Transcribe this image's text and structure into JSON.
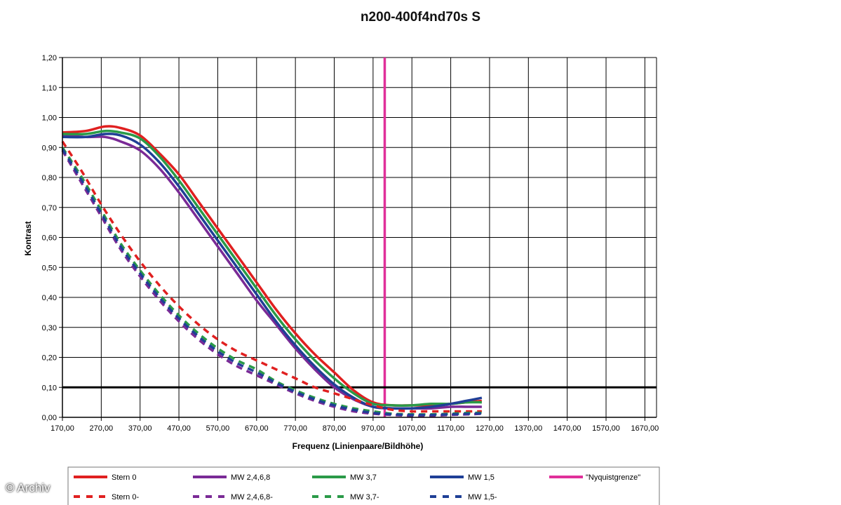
{
  "watermark": "© Archiv",
  "chart_data": {
    "type": "line",
    "title": "n200-400f4nd70s S",
    "xlabel": "Frequenz (Linienpaare/Bildhöhe)",
    "ylabel": "Kontrast",
    "xlim": [
      170,
      1700
    ],
    "ylim": [
      0,
      1.2
    ],
    "x_ticks": [
      "170,00",
      "270,00",
      "370,00",
      "470,00",
      "570,00",
      "670,00",
      "770,00",
      "870,00",
      "970,00",
      "1070,00",
      "1170,00",
      "1270,00",
      "1370,00",
      "1470,00",
      "1570,00",
      "1670,00"
    ],
    "y_ticks": [
      "0,00",
      "0,10",
      "0,20",
      "0,30",
      "0,40",
      "0,50",
      "0,60",
      "0,70",
      "0,80",
      "0,90",
      "1,00",
      "1,10",
      "1,20"
    ],
    "grid": true,
    "legend_position": "bottom",
    "reference_lines": [
      {
        "name": "\"Nyquistgrenze\"",
        "orientation": "vertical",
        "x": 1000,
        "color": "#e0309a"
      },
      {
        "name": "",
        "orientation": "horizontal",
        "y": 0.1,
        "color": "#000000"
      }
    ],
    "series": [
      {
        "name": "Stern 0",
        "color": "#e02020",
        "dash": false,
        "points": [
          [
            170,
            0.95
          ],
          [
            230,
            0.955
          ],
          [
            280,
            0.97
          ],
          [
            320,
            0.965
          ],
          [
            370,
            0.94
          ],
          [
            420,
            0.88
          ],
          [
            470,
            0.81
          ],
          [
            520,
            0.72
          ],
          [
            570,
            0.63
          ],
          [
            620,
            0.54
          ],
          [
            670,
            0.45
          ],
          [
            720,
            0.36
          ],
          [
            770,
            0.28
          ],
          [
            820,
            0.21
          ],
          [
            870,
            0.15
          ],
          [
            920,
            0.09
          ],
          [
            970,
            0.05
          ],
          [
            1020,
            0.04
          ],
          [
            1070,
            0.04
          ],
          [
            1120,
            0.04
          ],
          [
            1170,
            0.045
          ],
          [
            1210,
            0.05
          ],
          [
            1250,
            0.055
          ]
        ]
      },
      {
        "name": "MW 2,4,6,8",
        "color": "#7a2a96",
        "dash": false,
        "points": [
          [
            170,
            0.94
          ],
          [
            230,
            0.935
          ],
          [
            280,
            0.935
          ],
          [
            320,
            0.92
          ],
          [
            370,
            0.89
          ],
          [
            420,
            0.83
          ],
          [
            470,
            0.75
          ],
          [
            520,
            0.66
          ],
          [
            570,
            0.57
          ],
          [
            620,
            0.48
          ],
          [
            670,
            0.39
          ],
          [
            720,
            0.31
          ],
          [
            770,
            0.23
          ],
          [
            820,
            0.16
          ],
          [
            870,
            0.1
          ],
          [
            920,
            0.06
          ],
          [
            970,
            0.035
          ],
          [
            1020,
            0.03
          ],
          [
            1070,
            0.03
          ],
          [
            1120,
            0.03
          ],
          [
            1170,
            0.035
          ],
          [
            1210,
            0.035
          ],
          [
            1250,
            0.035
          ]
        ]
      },
      {
        "name": "MW 3,7",
        "color": "#2a9a48",
        "dash": false,
        "points": [
          [
            170,
            0.945
          ],
          [
            230,
            0.945
          ],
          [
            280,
            0.955
          ],
          [
            320,
            0.95
          ],
          [
            370,
            0.93
          ],
          [
            420,
            0.87
          ],
          [
            470,
            0.79
          ],
          [
            520,
            0.7
          ],
          [
            570,
            0.61
          ],
          [
            620,
            0.52
          ],
          [
            670,
            0.43
          ],
          [
            720,
            0.34
          ],
          [
            770,
            0.26
          ],
          [
            820,
            0.19
          ],
          [
            870,
            0.13
          ],
          [
            920,
            0.08
          ],
          [
            970,
            0.045
          ],
          [
            1020,
            0.04
          ],
          [
            1070,
            0.04
          ],
          [
            1120,
            0.045
          ],
          [
            1170,
            0.045
          ],
          [
            1210,
            0.05
          ],
          [
            1250,
            0.05
          ]
        ]
      },
      {
        "name": "MW 1,5",
        "color": "#1f3f96",
        "dash": false,
        "points": [
          [
            170,
            0.935
          ],
          [
            230,
            0.935
          ],
          [
            280,
            0.945
          ],
          [
            320,
            0.94
          ],
          [
            370,
            0.91
          ],
          [
            420,
            0.85
          ],
          [
            470,
            0.77
          ],
          [
            520,
            0.68
          ],
          [
            570,
            0.59
          ],
          [
            620,
            0.5
          ],
          [
            670,
            0.41
          ],
          [
            720,
            0.32
          ],
          [
            770,
            0.24
          ],
          [
            820,
            0.17
          ],
          [
            870,
            0.11
          ],
          [
            920,
            0.065
          ],
          [
            970,
            0.035
          ],
          [
            1020,
            0.03
          ],
          [
            1070,
            0.03
          ],
          [
            1120,
            0.035
          ],
          [
            1170,
            0.045
          ],
          [
            1210,
            0.055
          ],
          [
            1250,
            0.065
          ]
        ]
      },
      {
        "name": "Stern 0-",
        "color": "#e02020",
        "dash": true,
        "points": [
          [
            170,
            0.92
          ],
          [
            220,
            0.82
          ],
          [
            270,
            0.71
          ],
          [
            320,
            0.61
          ],
          [
            370,
            0.52
          ],
          [
            420,
            0.44
          ],
          [
            470,
            0.37
          ],
          [
            520,
            0.31
          ],
          [
            570,
            0.26
          ],
          [
            620,
            0.22
          ],
          [
            670,
            0.19
          ],
          [
            720,
            0.16
          ],
          [
            770,
            0.13
          ],
          [
            820,
            0.1
          ],
          [
            870,
            0.08
          ],
          [
            920,
            0.06
          ],
          [
            970,
            0.04
          ],
          [
            1020,
            0.025
          ],
          [
            1070,
            0.02
          ],
          [
            1120,
            0.02
          ],
          [
            1170,
            0.02
          ],
          [
            1220,
            0.02
          ],
          [
            1250,
            0.02
          ]
        ]
      },
      {
        "name": "MW 2,4,6,8-",
        "color": "#7a2a96",
        "dash": true,
        "points": [
          [
            170,
            0.89
          ],
          [
            220,
            0.78
          ],
          [
            270,
            0.67
          ],
          [
            320,
            0.56
          ],
          [
            370,
            0.47
          ],
          [
            420,
            0.39
          ],
          [
            470,
            0.32
          ],
          [
            520,
            0.26
          ],
          [
            570,
            0.21
          ],
          [
            620,
            0.17
          ],
          [
            670,
            0.14
          ],
          [
            720,
            0.11
          ],
          [
            770,
            0.08
          ],
          [
            820,
            0.055
          ],
          [
            870,
            0.035
          ],
          [
            920,
            0.02
          ],
          [
            970,
            0.012
          ],
          [
            1020,
            0.008
          ],
          [
            1070,
            0.005
          ],
          [
            1120,
            0.005
          ],
          [
            1170,
            0.008
          ],
          [
            1220,
            0.01
          ],
          [
            1250,
            0.012
          ]
        ]
      },
      {
        "name": "MW 3,7-",
        "color": "#2a9a48",
        "dash": true,
        "points": [
          [
            170,
            0.9
          ],
          [
            220,
            0.8
          ],
          [
            270,
            0.69
          ],
          [
            320,
            0.58
          ],
          [
            370,
            0.49
          ],
          [
            420,
            0.41
          ],
          [
            470,
            0.34
          ],
          [
            520,
            0.28
          ],
          [
            570,
            0.23
          ],
          [
            620,
            0.19
          ],
          [
            670,
            0.16
          ],
          [
            720,
            0.12
          ],
          [
            770,
            0.09
          ],
          [
            820,
            0.065
          ],
          [
            870,
            0.045
          ],
          [
            920,
            0.03
          ],
          [
            970,
            0.02
          ],
          [
            1020,
            0.012
          ],
          [
            1070,
            0.01
          ],
          [
            1120,
            0.01
          ],
          [
            1170,
            0.012
          ],
          [
            1220,
            0.015
          ],
          [
            1250,
            0.015
          ]
        ]
      },
      {
        "name": "MW 1,5-",
        "color": "#1f3f96",
        "dash": true,
        "points": [
          [
            170,
            0.895
          ],
          [
            220,
            0.79
          ],
          [
            270,
            0.68
          ],
          [
            320,
            0.57
          ],
          [
            370,
            0.48
          ],
          [
            420,
            0.4
          ],
          [
            470,
            0.33
          ],
          [
            520,
            0.27
          ],
          [
            570,
            0.22
          ],
          [
            620,
            0.18
          ],
          [
            670,
            0.15
          ],
          [
            720,
            0.115
          ],
          [
            770,
            0.085
          ],
          [
            820,
            0.06
          ],
          [
            870,
            0.04
          ],
          [
            920,
            0.025
          ],
          [
            970,
            0.015
          ],
          [
            1020,
            0.01
          ],
          [
            1070,
            0.008
          ],
          [
            1120,
            0.008
          ],
          [
            1170,
            0.01
          ],
          [
            1220,
            0.012
          ],
          [
            1250,
            0.013
          ]
        ]
      }
    ]
  }
}
